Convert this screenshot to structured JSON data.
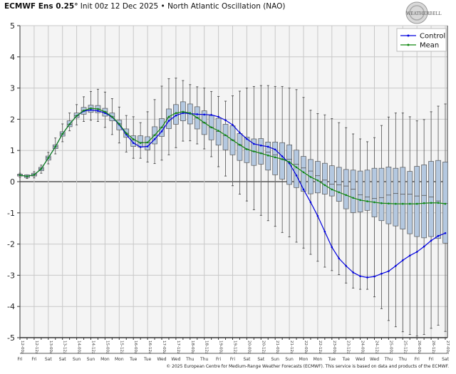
{
  "header": {
    "model": "ECMWF Ens 0.25°",
    "subtitle": "Init 00z 12 Dec 2025 • North Atlantic Oscillation (NAO)"
  },
  "logo": {
    "text": "WeatherBELL"
  },
  "footer": "© 2025 European Centre for Medium-Range Weather Forecasts (ECMWF). This service is based on data and products of the ECMWF.",
  "colors": {
    "control": "#0000dd",
    "mean": "#118811",
    "box_fill": "#b4c8e0",
    "box_stroke": "#555555",
    "background": "#f4f4f4"
  },
  "chart_data": {
    "type": "line",
    "ylim": [
      -5,
      5
    ],
    "yticks": [
      "5",
      "4",
      "3",
      "2",
      "1",
      "0",
      "-1",
      "-2",
      "-3",
      "-4",
      "-5"
    ],
    "grid": true,
    "legend_placement": "top-right",
    "x_step_hours": 6,
    "x_labels": [
      "12-00z",
      "12-12z",
      "13-00z",
      "13-12z",
      "14-00z",
      "14-12z",
      "15-00z",
      "15-12z",
      "16-00z",
      "16-12z",
      "17-00z",
      "17-12z",
      "18-00z",
      "18-12z",
      "19-00z",
      "19-12z",
      "20-00z",
      "20-12z",
      "21-00z",
      "21-12z",
      "22-00z",
      "22-12z",
      "23-00z",
      "23-12z",
      "24-00z",
      "24-12z",
      "25-00z",
      "25-12z",
      "26-00z",
      "26-12z",
      "27-00z"
    ],
    "day_labels": [
      "Fri",
      "Fri",
      "Sat",
      "Sat",
      "Sun",
      "Sun",
      "Mon",
      "Mon",
      "Tue",
      "Tue",
      "Wed",
      "Wed",
      "Thu",
      "Thu",
      "Fri",
      "Fri",
      "Sat",
      "Sat",
      "Sun",
      "Sun",
      "Mon",
      "Mon",
      "Tue",
      "Tue",
      "Wed",
      "Wed",
      "Thu",
      "Thu",
      "Fri",
      "Fri",
      "Sat"
    ],
    "series": [
      {
        "name": "Control",
        "values": [
          0.21,
          0.17,
          0.22,
          0.41,
          0.76,
          1.12,
          1.53,
          1.84,
          2.11,
          2.26,
          2.3,
          2.27,
          2.2,
          2.07,
          1.83,
          1.51,
          1.24,
          1.11,
          1.13,
          1.36,
          1.61,
          1.95,
          2.12,
          2.2,
          2.18,
          2.16,
          2.15,
          2.14,
          2.08,
          1.97,
          1.82,
          1.57,
          1.37,
          1.21,
          1.16,
          1.12,
          1.03,
          0.81,
          0.59,
          0.2,
          -0.25,
          -0.66,
          -1.1,
          -1.6,
          -2.1,
          -2.46,
          -2.7,
          -2.91,
          -3.03,
          -3.07,
          -3.04,
          -2.95,
          -2.87,
          -2.7,
          -2.52,
          -2.37,
          -2.25,
          -2.08,
          -1.89,
          -1.74,
          -1.65
        ]
      },
      {
        "name": "Mean",
        "values": [
          0.21,
          0.17,
          0.22,
          0.41,
          0.76,
          1.12,
          1.53,
          1.84,
          2.11,
          2.28,
          2.35,
          2.33,
          2.24,
          2.08,
          1.85,
          1.55,
          1.36,
          1.24,
          1.26,
          1.49,
          1.74,
          2.08,
          2.2,
          2.24,
          2.2,
          2.05,
          1.89,
          1.74,
          1.63,
          1.49,
          1.33,
          1.18,
          1.04,
          0.97,
          0.91,
          0.84,
          0.78,
          0.72,
          0.63,
          0.46,
          0.3,
          0.15,
          0.04,
          -0.11,
          -0.25,
          -0.34,
          -0.43,
          -0.52,
          -0.59,
          -0.63,
          -0.66,
          -0.69,
          -0.7,
          -0.71,
          -0.71,
          -0.71,
          -0.71,
          -0.69,
          -0.68,
          -0.68,
          -0.71
        ]
      }
    ],
    "boxes": {
      "max": [
        0.27,
        0.22,
        0.32,
        0.53,
        0.94,
        1.4,
        1.85,
        2.2,
        2.47,
        2.72,
        2.89,
        2.96,
        2.87,
        2.66,
        2.39,
        2.12,
        2.08,
        1.89,
        2.24,
        2.63,
        3.06,
        3.3,
        3.32,
        3.24,
        3.11,
        3.04,
        3.0,
        2.89,
        2.73,
        2.58,
        2.75,
        2.9,
        3.0,
        3.05,
        3.08,
        3.08,
        3.05,
        3.05,
        3.0,
        2.95,
        2.7,
        2.29,
        2.18,
        2.14,
        2.02,
        1.89,
        1.73,
        1.53,
        1.37,
        1.28,
        1.41,
        1.8,
        2.07,
        2.2,
        2.2,
        2.08,
        1.95,
        1.99,
        2.24,
        2.42,
        2.49
      ],
      "q3": [
        0.24,
        0.22,
        0.27,
        0.46,
        0.82,
        1.18,
        1.6,
        1.95,
        2.2,
        2.38,
        2.45,
        2.44,
        2.35,
        2.2,
        1.97,
        1.69,
        1.47,
        1.47,
        1.44,
        1.76,
        2.02,
        2.33,
        2.47,
        2.56,
        2.49,
        2.4,
        2.27,
        2.12,
        2.03,
        1.84,
        1.79,
        1.54,
        1.43,
        1.37,
        1.38,
        1.27,
        1.27,
        1.25,
        1.18,
        1.01,
        0.81,
        0.71,
        0.65,
        0.59,
        0.51,
        0.46,
        0.39,
        0.37,
        0.34,
        0.37,
        0.43,
        0.43,
        0.47,
        0.43,
        0.46,
        0.33,
        0.49,
        0.54,
        0.65,
        0.68,
        0.63
      ],
      "median": [
        0.21,
        0.17,
        0.22,
        0.41,
        0.76,
        1.12,
        1.53,
        1.84,
        2.11,
        2.28,
        2.35,
        2.33,
        2.24,
        2.08,
        1.85,
        1.55,
        1.33,
        1.26,
        1.24,
        1.49,
        1.74,
        2.05,
        2.18,
        2.24,
        2.18,
        2.05,
        1.89,
        1.74,
        1.61,
        1.47,
        1.33,
        1.18,
        1.04,
        0.97,
        0.91,
        0.95,
        0.86,
        0.72,
        0.72,
        0.56,
        0.44,
        0.34,
        0.19,
        0.05,
        -0.08,
        -0.1,
        -0.14,
        -0.24,
        -0.42,
        -0.49,
        -0.54,
        -0.51,
        -0.43,
        -0.38,
        -0.4,
        -0.4,
        -0.46,
        -0.44,
        -0.49,
        -0.62,
        -0.7
      ],
      "q1": [
        0.18,
        0.13,
        0.18,
        0.35,
        0.69,
        1.06,
        1.46,
        1.76,
        2.05,
        2.16,
        2.22,
        2.21,
        2.1,
        1.95,
        1.66,
        1.42,
        1.13,
        1.11,
        1.02,
        1.21,
        1.45,
        1.7,
        1.84,
        1.95,
        1.85,
        1.69,
        1.51,
        1.34,
        1.17,
        1.02,
        0.86,
        0.68,
        0.61,
        0.52,
        0.56,
        0.37,
        0.22,
        0.08,
        -0.09,
        -0.19,
        -0.31,
        -0.39,
        -0.36,
        -0.4,
        -0.46,
        -0.63,
        -0.87,
        -0.99,
        -0.97,
        -0.92,
        -1.13,
        -1.25,
        -1.35,
        -1.42,
        -1.52,
        -1.67,
        -1.76,
        -1.8,
        -1.76,
        -1.82,
        -1.97
      ],
      "min": [
        0.14,
        0.1,
        0.12,
        0.27,
        0.57,
        0.89,
        1.28,
        1.63,
        1.82,
        1.93,
        1.97,
        1.93,
        1.74,
        1.51,
        1.24,
        0.95,
        0.75,
        0.75,
        0.63,
        0.58,
        0.69,
        0.86,
        1.09,
        1.3,
        1.31,
        1.21,
        1.05,
        0.8,
        0.48,
        0.18,
        -0.13,
        -0.4,
        -0.62,
        -0.9,
        -1.08,
        -1.25,
        -1.43,
        -1.63,
        -1.77,
        -1.94,
        -2.13,
        -2.33,
        -2.55,
        -2.74,
        -2.85,
        -2.98,
        -3.25,
        -3.41,
        -3.45,
        -3.45,
        -3.69,
        -4.07,
        -4.45,
        -4.65,
        -4.81,
        -4.9,
        -4.95,
        -4.9,
        -4.7,
        -4.6,
        -4.8
      ]
    }
  }
}
